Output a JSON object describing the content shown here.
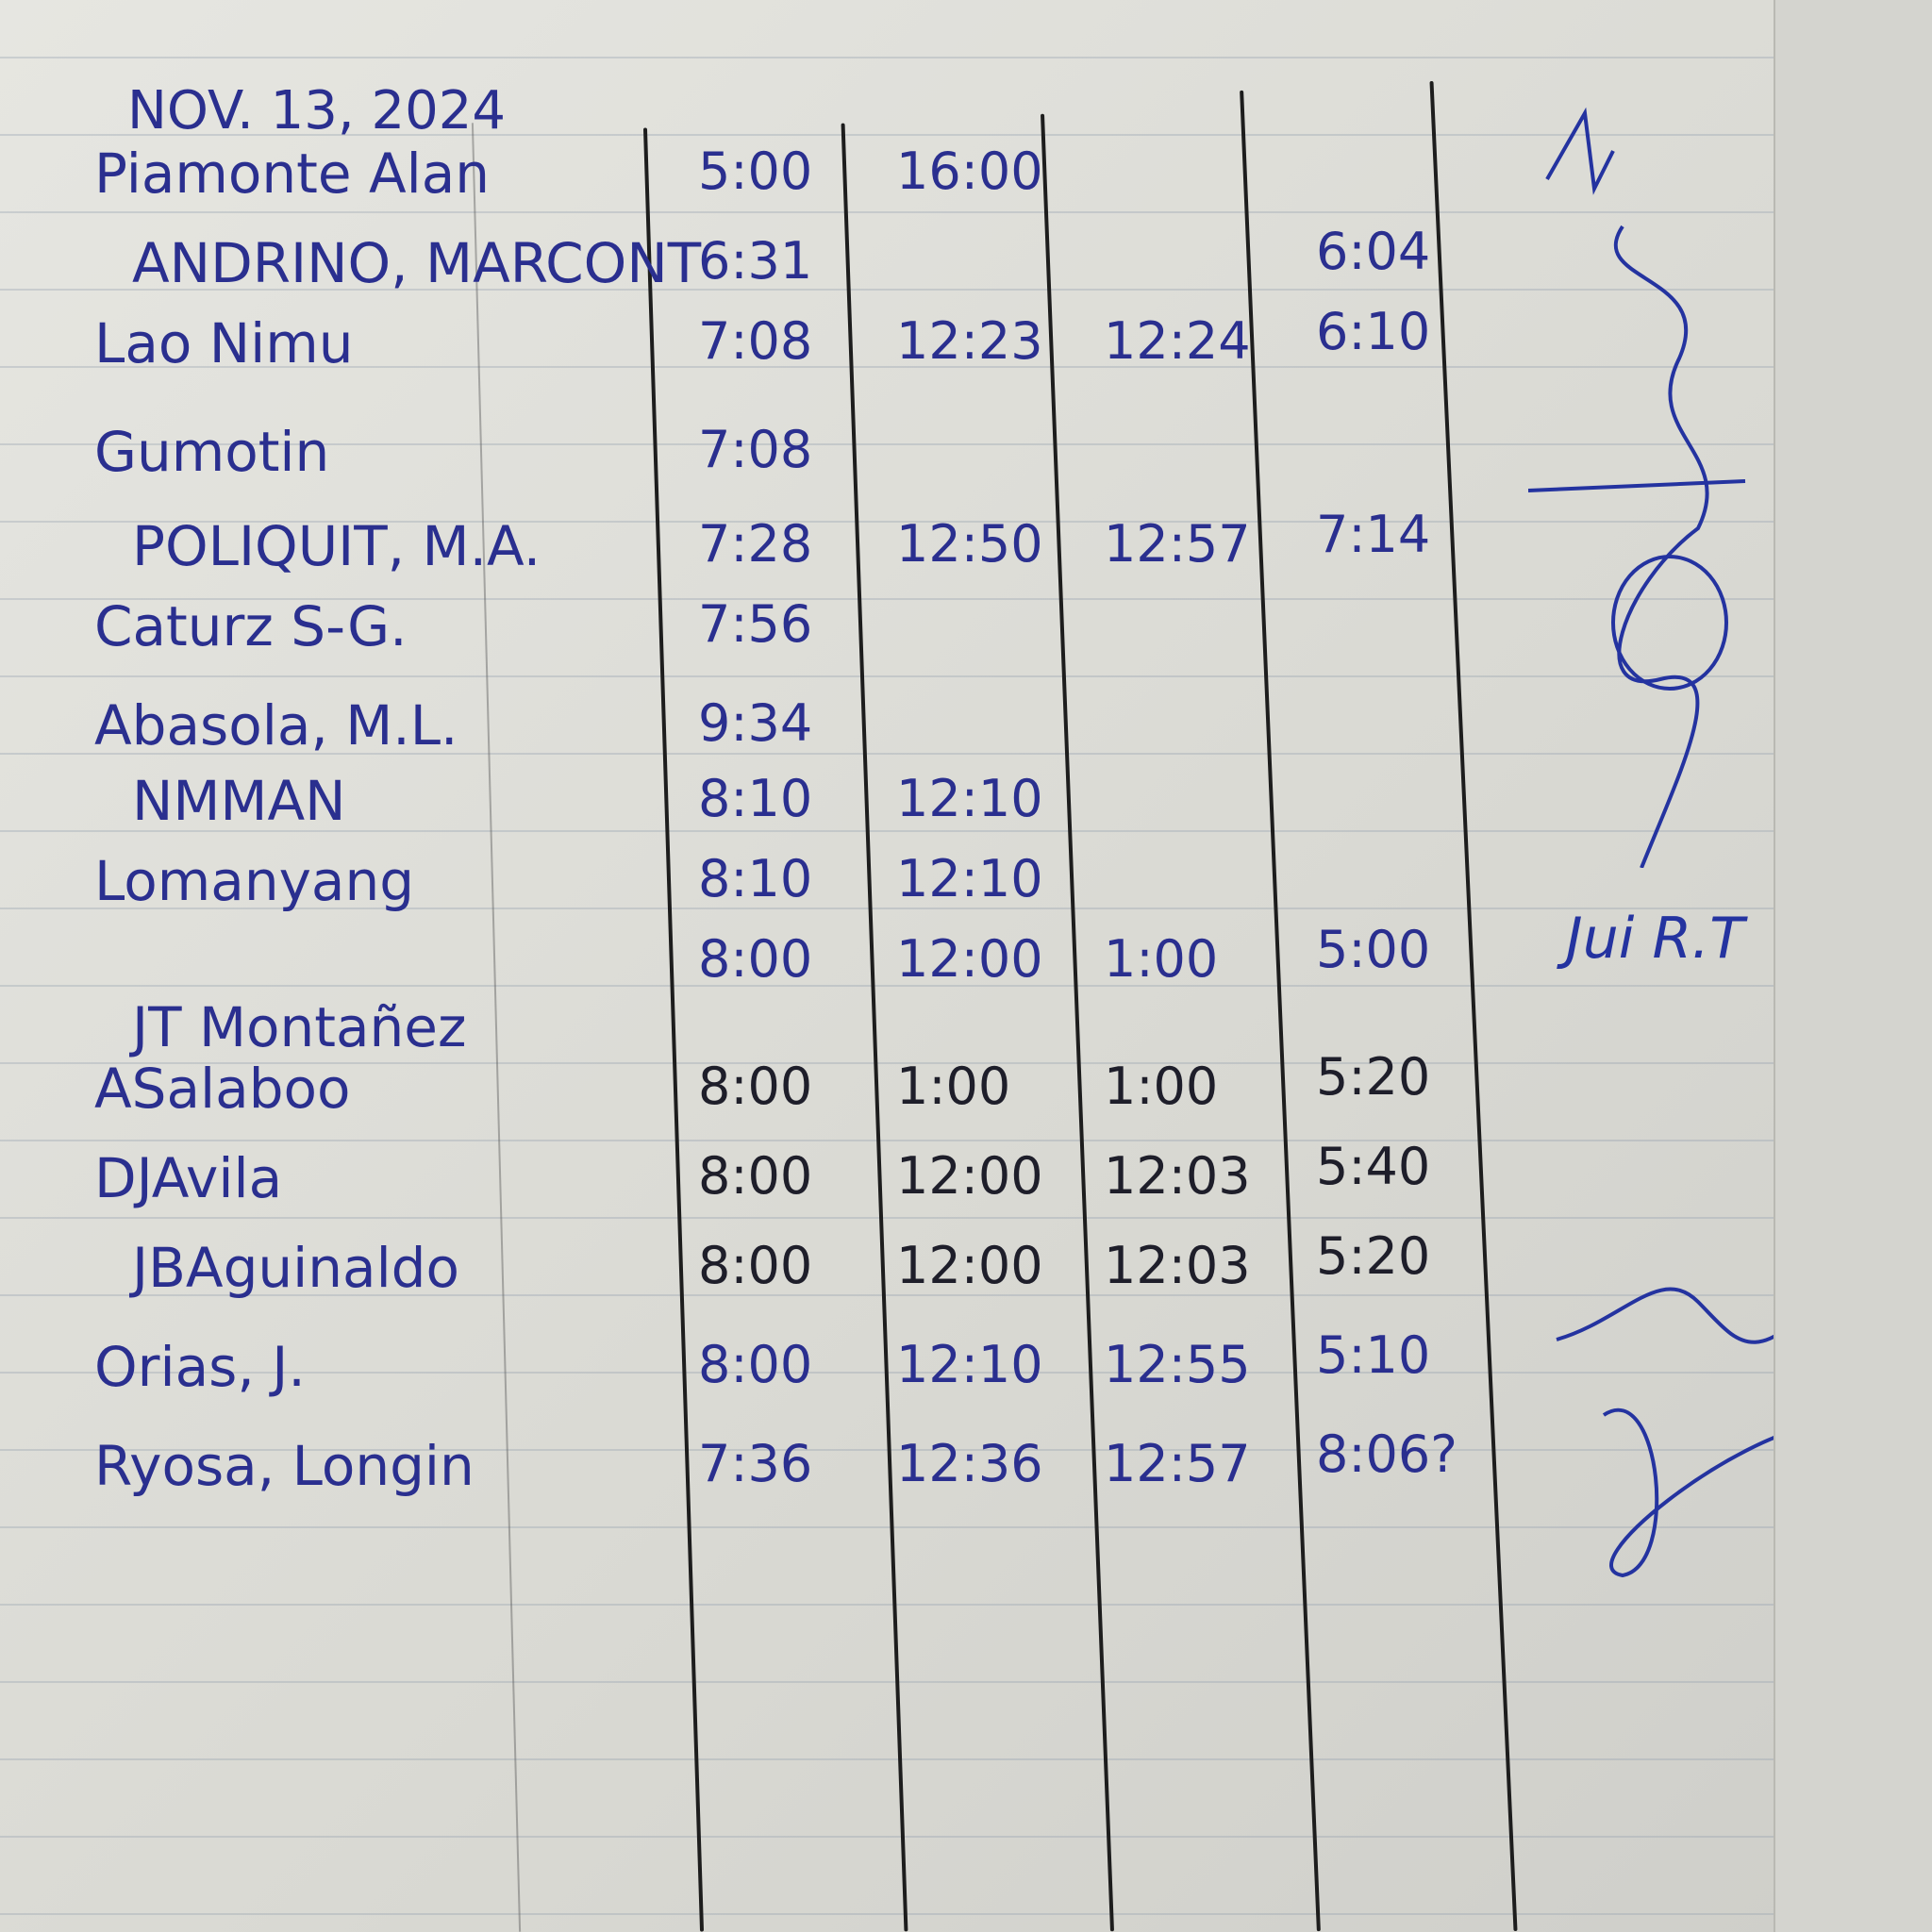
{
  "date": "NOV. 13, 2024",
  "rows": [
    {
      "name": "Piamonte Alan",
      "t1": "5:00",
      "t2": "16:00",
      "t3": "",
      "t4": ""
    },
    {
      "name": "ANDRINO, MARCONT",
      "t1": "6:31",
      "t2": "",
      "t3": "",
      "t4": "6:04"
    },
    {
      "name": "Lao Nimu",
      "t1": "7:08",
      "t2": "12:23",
      "t3": "12:24",
      "t4": "6:10"
    },
    {
      "name": "Gumotin",
      "t1": "7:08",
      "t2": "",
      "t3": "",
      "t4": ""
    },
    {
      "name": "POLIQUIT, M.A.",
      "t1": "7:28",
      "t2": "12:50",
      "t3": "12:57",
      "t4": "7:14"
    },
    {
      "name": "Caturz S-G.",
      "t1": "7:56",
      "t2": "",
      "t3": "",
      "t4": ""
    },
    {
      "name": "Abasola, M.L.",
      "t1": "9:34",
      "t2": "",
      "t3": "",
      "t4": ""
    },
    {
      "name": "NMMAN",
      "t1": "8:10",
      "t2": "12:10",
      "t3": "",
      "t4": ""
    },
    {
      "name": "Lomanyang",
      "t1": "8:10",
      "t2": "12:10",
      "t3": "",
      "t4": ""
    },
    {
      "name": "",
      "t1": "8:00",
      "t2": "12:00",
      "t3": "1:00",
      "t4": "5:00"
    },
    {
      "name": "JT Montañez",
      "t1": "",
      "t2": "",
      "t3": "",
      "t4": ""
    },
    {
      "name": "ASalaboo",
      "t1": "8:00",
      "t2": "1:00",
      "t3": "1:00",
      "t4": "5:20"
    },
    {
      "name": "DJAvila",
      "t1": "8:00",
      "t2": "12:00",
      "t3": "12:03",
      "t4": "5:40"
    },
    {
      "name": "JBAguinaldo",
      "t1": "8:00",
      "t2": "12:00",
      "t3": "12:03",
      "t4": "5:20"
    },
    {
      "name": "Orias, J.",
      "t1": "8:00",
      "t2": "12:10",
      "t3": "12:55",
      "t4": "5:10"
    },
    {
      "name": "Ryosa, Longin",
      "t1": "7:36",
      "t2": "12:36",
      "t3": "12:57",
      "t4": "8:06?"
    }
  ],
  "signature_text": "Jui R.T",
  "colors": {
    "ink_blue": "#2a2f8f",
    "ink_black": "#1e1e2a",
    "paper": "#e2e2dd"
  }
}
